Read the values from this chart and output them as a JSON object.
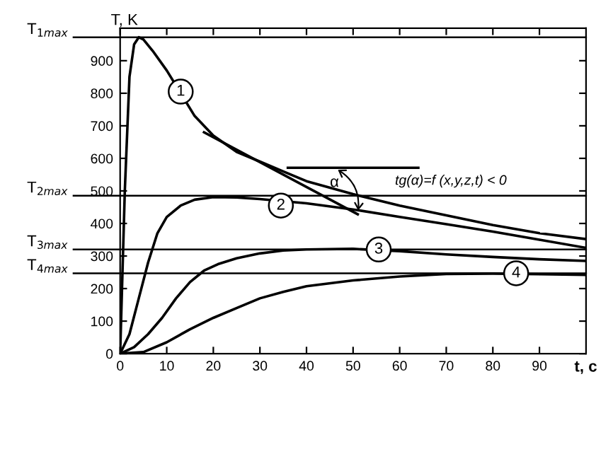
{
  "chart_data": {
    "type": "line",
    "xlabel": "t, c",
    "ylabel": "T, K",
    "xlim": [
      0,
      100
    ],
    "ylim": [
      0,
      1000
    ],
    "xticks": [
      0,
      10,
      20,
      30,
      40,
      50,
      60,
      70,
      80,
      90
    ],
    "yticks": [
      0,
      100,
      200,
      300,
      400,
      500,
      600,
      700,
      800,
      900
    ],
    "grid": false,
    "marker": "none",
    "line_style": "solid",
    "series": [
      {
        "color": "#000000",
        "x": [
          0,
          1,
          2,
          3,
          4,
          5,
          7,
          10,
          13,
          16,
          20,
          25,
          30,
          35,
          40,
          50,
          60,
          70,
          80,
          90,
          100
        ],
        "values": [
          0,
          500,
          850,
          950,
          972,
          965,
          930,
          870,
          800,
          730,
          670,
          620,
          590,
          560,
          530,
          490,
          455,
          425,
          395,
          370,
          352
        ]
      },
      {
        "color": "#000000",
        "x": [
          0,
          2,
          4,
          6,
          8,
          10,
          13,
          16,
          20,
          25,
          30,
          40,
          50,
          60,
          70,
          80,
          90,
          100
        ],
        "values": [
          0,
          60,
          170,
          280,
          370,
          420,
          455,
          473,
          481,
          480,
          475,
          462,
          443,
          420,
          398,
          375,
          350,
          325
        ]
      },
      {
        "color": "#000000",
        "x": [
          0,
          3,
          6,
          9,
          12,
          15,
          18,
          21,
          25,
          30,
          35,
          40,
          50,
          60,
          70,
          80,
          90,
          100
        ],
        "values": [
          0,
          20,
          60,
          110,
          170,
          220,
          255,
          275,
          293,
          308,
          317,
          320,
          322,
          315,
          305,
          297,
          290,
          285
        ]
      },
      {
        "color": "#000000",
        "x": [
          0,
          5,
          10,
          15,
          20,
          25,
          30,
          35,
          40,
          50,
          60,
          70,
          80,
          90,
          100
        ],
        "values": [
          0,
          5,
          35,
          75,
          110,
          140,
          170,
          190,
          207,
          225,
          237,
          245,
          246,
          244,
          242
        ]
      },
      {
        "color": "#000000",
        "x": [
          18,
          51
        ],
        "values": [
          680,
          428
        ]
      },
      {
        "color": "#000000",
        "x": [
          36,
          64
        ],
        "values": [
          571,
          571
        ]
      }
    ],
    "ref_lines": [
      {
        "axis": "y",
        "value": 972,
        "label": "T$_{1max}$",
        "color": "#000000"
      },
      {
        "axis": "y",
        "value": 485,
        "label": "T$_{2max}$",
        "color": "#000000"
      },
      {
        "axis": "y",
        "value": 320,
        "label": "T$_{3max}$",
        "color": "#000000"
      },
      {
        "axis": "y",
        "value": 247,
        "label": "T$_{4max}$",
        "color": "#000000"
      }
    ],
    "annotations": [
      {
        "text": "1",
        "x": 13,
        "y": 805
      },
      {
        "text": "2",
        "x": 34.5,
        "y": 455
      },
      {
        "text": "3",
        "x": 55.5,
        "y": 320
      },
      {
        "text": "4",
        "x": 85,
        "y": 247
      },
      {
        "text": "α",
        "x": 46,
        "y": 525
      },
      "tg(α)=f (x,y,z,t) < 0"
    ]
  }
}
